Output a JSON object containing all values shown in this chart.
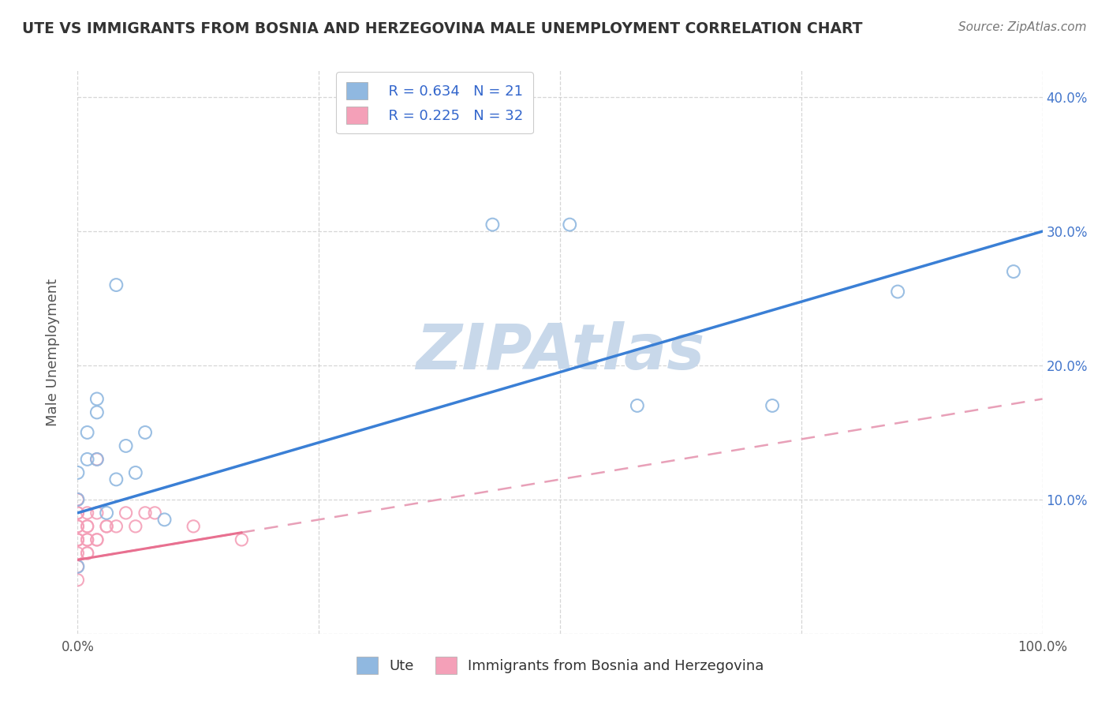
{
  "title": "UTE VS IMMIGRANTS FROM BOSNIA AND HERZEGOVINA MALE UNEMPLOYMENT CORRELATION CHART",
  "source": "Source: ZipAtlas.com",
  "ylabel": "Male Unemployment",
  "xlim": [
    0.0,
    1.0
  ],
  "ylim": [
    0.0,
    0.42
  ],
  "xticks": [
    0.0,
    0.25,
    0.5,
    0.75,
    1.0
  ],
  "xtick_labels": [
    "0.0%",
    "",
    "",
    "",
    "100.0%"
  ],
  "yticks": [
    0.0,
    0.1,
    0.2,
    0.3,
    0.4
  ],
  "ytick_labels": [
    "",
    "10.0%",
    "20.0%",
    "30.0%",
    "40.0%"
  ],
  "watermark": "ZIPAtlas",
  "legend_R1": "R = 0.634",
  "legend_N1": "N = 21",
  "legend_R2": "R = 0.225",
  "legend_N2": "N = 32",
  "legend_label1": "Ute",
  "legend_label2": "Immigrants from Bosnia and Herzegovina",
  "ute_color": "#90b8e0",
  "immig_color": "#f4a0b8",
  "ute_line_color": "#3a7fd5",
  "immig_line_color": "#e87090",
  "immig_dash_color": "#e8a0b8",
  "title_color": "#333333",
  "source_color": "#777777",
  "grid_color": "#cccccc",
  "watermark_color": "#c8d8ea",
  "ute_scatter_x": [
    0.0,
    0.0,
    0.0,
    0.01,
    0.01,
    0.02,
    0.02,
    0.02,
    0.03,
    0.04,
    0.04,
    0.05,
    0.06,
    0.07,
    0.09,
    0.43,
    0.51,
    0.58,
    0.72,
    0.85,
    0.97
  ],
  "ute_scatter_y": [
    0.1,
    0.05,
    0.12,
    0.13,
    0.15,
    0.165,
    0.175,
    0.13,
    0.09,
    0.115,
    0.26,
    0.14,
    0.12,
    0.15,
    0.085,
    0.305,
    0.305,
    0.17,
    0.17,
    0.255,
    0.27
  ],
  "immig_scatter_x": [
    0.0,
    0.0,
    0.0,
    0.0,
    0.0,
    0.0,
    0.0,
    0.0,
    0.0,
    0.0,
    0.0,
    0.0,
    0.01,
    0.01,
    0.01,
    0.01,
    0.01,
    0.01,
    0.01,
    0.02,
    0.02,
    0.02,
    0.02,
    0.03,
    0.03,
    0.04,
    0.05,
    0.06,
    0.07,
    0.08,
    0.12,
    0.17
  ],
  "immig_scatter_y": [
    0.04,
    0.05,
    0.06,
    0.07,
    0.07,
    0.07,
    0.08,
    0.08,
    0.09,
    0.09,
    0.1,
    0.1,
    0.06,
    0.06,
    0.07,
    0.07,
    0.08,
    0.08,
    0.09,
    0.07,
    0.07,
    0.09,
    0.13,
    0.08,
    0.08,
    0.08,
    0.09,
    0.08,
    0.09,
    0.09,
    0.08,
    0.07
  ],
  "ute_line_x": [
    0.0,
    1.0
  ],
  "ute_line_y": [
    0.09,
    0.3
  ],
  "immig_line_x": [
    0.0,
    1.0
  ],
  "immig_line_y": [
    0.055,
    0.175
  ]
}
